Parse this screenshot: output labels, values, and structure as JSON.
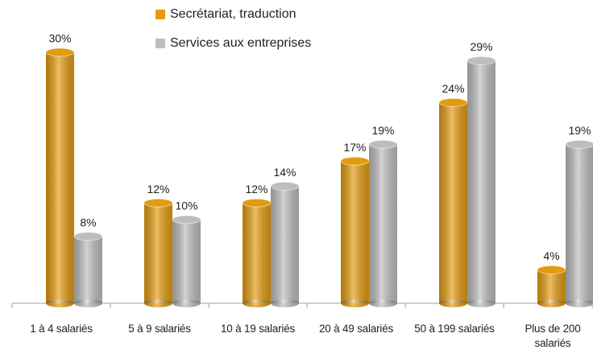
{
  "chart_data": {
    "type": "bar",
    "categories": [
      "1 à 4 salariés",
      "5 à 9 salariés",
      "10 à 19 salariés",
      "20 à 49 salariés",
      "50 à 199 salariés",
      "Plus de 200 salariés"
    ],
    "series": [
      {
        "name": "Secrétariat, traduction",
        "color": "#e39b10",
        "values": [
          30,
          12,
          12,
          17,
          24,
          4
        ],
        "value_labels": [
          "30%",
          "12%",
          "12%",
          "17%",
          "24%",
          "4%"
        ]
      },
      {
        "name": "Services aux entreprises",
        "color": "#bdbdbd",
        "values": [
          8,
          10,
          14,
          19,
          29,
          19
        ],
        "value_labels": [
          "8%",
          "10%",
          "14%",
          "19%",
          "29%",
          "19%"
        ]
      }
    ],
    "legend": "top"
  }
}
